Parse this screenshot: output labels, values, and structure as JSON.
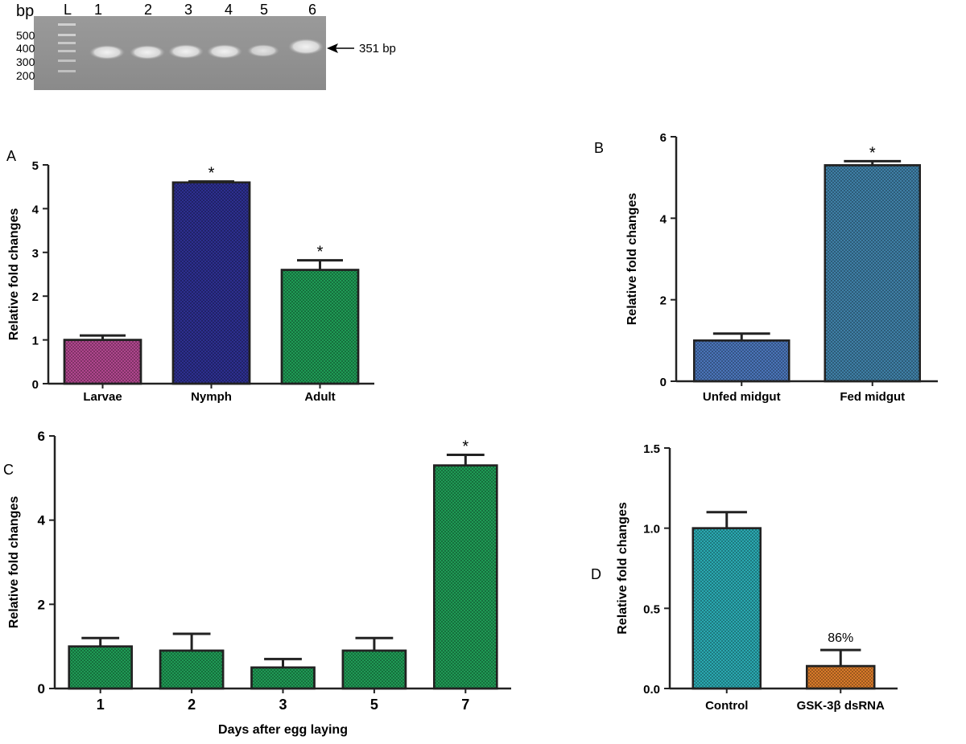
{
  "gel": {
    "bp_label": "bp",
    "ladder_label": "L",
    "lane_labels": [
      "1",
      "2",
      "3",
      "4",
      "5",
      "6"
    ],
    "marker_labels": [
      "500",
      "400",
      "300",
      "200"
    ],
    "band_label": "351 bp"
  },
  "chart_data": [
    {
      "panel": "A",
      "type": "bar",
      "ylabel": "Relative fold changes",
      "xlabel": "",
      "ylim": [
        0,
        5
      ],
      "yticks": [
        "0",
        "1",
        "2",
        "3",
        "4",
        "5"
      ],
      "categories": [
        "Larvae",
        "Nymph",
        "Adult"
      ],
      "values": [
        1.0,
        4.6,
        2.6
      ],
      "errors": [
        0.1,
        0.02,
        0.22
      ],
      "annotations": [
        "",
        "*",
        "*"
      ],
      "colors": [
        "#b0468e",
        "#2d2f8f",
        "#1f9a55"
      ]
    },
    {
      "panel": "B",
      "type": "bar",
      "ylabel": "Relative fold changes",
      "xlabel": "",
      "ylim": [
        0,
        6
      ],
      "yticks": [
        "0",
        "2",
        "4",
        "6"
      ],
      "categories": [
        "Unfed midgut",
        "Fed midgut"
      ],
      "values": [
        1.0,
        5.3
      ],
      "errors": [
        0.17,
        0.1
      ],
      "annotations": [
        "",
        "*"
      ],
      "colors": [
        "#4a74b8",
        "#3f7fa6"
      ]
    },
    {
      "panel": "C",
      "type": "bar",
      "ylabel": "Relative fold changes",
      "xlabel": "Days after egg laying",
      "ylim": [
        0,
        6
      ],
      "yticks": [
        "0",
        "2",
        "4",
        "6"
      ],
      "categories": [
        "1",
        "2",
        "3",
        "5",
        "7"
      ],
      "values": [
        1.0,
        0.9,
        0.5,
        0.9,
        5.3
      ],
      "errors": [
        0.2,
        0.4,
        0.2,
        0.3,
        0.25
      ],
      "annotations": [
        "",
        "",
        "",
        "",
        "*"
      ],
      "colors": [
        "#1f9a55",
        "#1f9a55",
        "#1f9a55",
        "#1f9a55",
        "#1f9a55"
      ]
    },
    {
      "panel": "D",
      "type": "bar",
      "ylabel": "Relative fold changes",
      "xlabel": "",
      "ylim": [
        0,
        1.5
      ],
      "yticks": [
        "0.0",
        "0.5",
        "1.0",
        "1.5"
      ],
      "categories": [
        "Control",
        "GSK-3β dsRNA"
      ],
      "values": [
        1.0,
        0.14
      ],
      "errors": [
        0.1,
        0.1
      ],
      "annotations": [
        "",
        "86%"
      ],
      "colors": [
        "#2aa8b0",
        "#d87a2a"
      ]
    }
  ]
}
